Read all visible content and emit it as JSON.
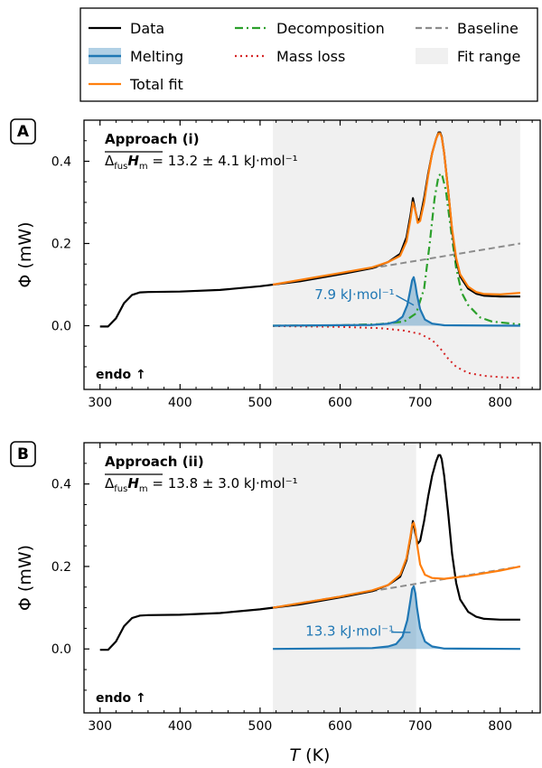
{
  "legend": {
    "items": [
      {
        "key": "data",
        "label": "Data",
        "color": "#000000",
        "style": "solid"
      },
      {
        "key": "decomposition",
        "label": "Decomposition",
        "color": "#2ca02c",
        "style": "dashdot"
      },
      {
        "key": "baseline",
        "label": "Baseline",
        "color": "#8c8c8c",
        "style": "dashed"
      },
      {
        "key": "melting",
        "label": "Melting",
        "color": "#1f77b4",
        "style": "solid-filled"
      },
      {
        "key": "mass_loss",
        "label": "Mass loss",
        "color": "#d62728",
        "style": "dotted"
      },
      {
        "key": "fit_range",
        "label": "Fit range",
        "color": "#f0f0f0",
        "style": "patch"
      },
      {
        "key": "total_fit",
        "label": "Total fit",
        "color": "#ff7f0e",
        "style": "solid"
      }
    ]
  },
  "axes": {
    "xlabel_var": "T",
    "xlabel_unit": " (K)",
    "ylabel": "Φ (mW)",
    "xticks": [
      300,
      400,
      500,
      600,
      700,
      800
    ],
    "yticks": [
      0.0,
      0.2,
      0.4
    ],
    "ytick_labels": [
      "0.0",
      "0.2",
      "0.4"
    ],
    "xlim": [
      280,
      850
    ],
    "ylim": [
      -0.155,
      0.5
    ],
    "endo_label": "endo ↑"
  },
  "chart_data": [
    {
      "type": "line",
      "panel": "A",
      "title": "Approach (i)",
      "formula": {
        "sub1": "fus",
        "var": "H",
        "sub2": "m",
        "value": " = 13.2 ± 4.1 kJ·mol⁻¹"
      },
      "fit_range": [
        516,
        825
      ],
      "series": {
        "data": {
          "x": [
            300,
            310,
            320,
            330,
            340,
            350,
            360,
            400,
            450,
            500,
            550,
            600,
            640,
            660,
            675,
            683,
            688,
            691,
            694,
            697,
            700,
            705,
            710,
            715,
            720,
            723,
            725,
            727,
            730,
            735,
            740,
            745,
            750,
            760,
            770,
            780,
            800,
            825
          ],
          "y": [
            -0.002,
            -0.002,
            0.018,
            0.055,
            0.075,
            0.081,
            0.082,
            0.083,
            0.087,
            0.096,
            0.108,
            0.125,
            0.14,
            0.155,
            0.175,
            0.215,
            0.27,
            0.31,
            0.28,
            0.255,
            0.262,
            0.31,
            0.37,
            0.42,
            0.455,
            0.47,
            0.47,
            0.46,
            0.42,
            0.33,
            0.23,
            0.16,
            0.12,
            0.09,
            0.078,
            0.073,
            0.071,
            0.071
          ]
        },
        "baseline": {
          "x": [
            516,
            825
          ],
          "y": [
            0.1,
            0.2
          ]
        },
        "melting": {
          "x": [
            516,
            640,
            660,
            670,
            678,
            684,
            688,
            690,
            692,
            694,
            696,
            700,
            706,
            715,
            730,
            825
          ],
          "y": [
            0.0,
            0.002,
            0.005,
            0.01,
            0.022,
            0.05,
            0.09,
            0.11,
            0.118,
            0.1,
            0.075,
            0.04,
            0.015,
            0.005,
            0.001,
            0.0
          ]
        },
        "decomposition": {
          "x": [
            516,
            600,
            650,
            680,
            695,
            705,
            712,
            718,
            723,
            727,
            732,
            738,
            745,
            752,
            760,
            775,
            790,
            825
          ],
          "y": [
            0.0,
            0.001,
            0.004,
            0.01,
            0.03,
            0.09,
            0.2,
            0.31,
            0.365,
            0.37,
            0.33,
            0.24,
            0.14,
            0.08,
            0.05,
            0.02,
            0.01,
            0.003
          ]
        },
        "mass_loss": {
          "x": [
            516,
            600,
            650,
            680,
            700,
            715,
            725,
            735,
            745,
            760,
            780,
            800,
            825
          ],
          "y": [
            -0.001,
            -0.003,
            -0.006,
            -0.012,
            -0.02,
            -0.035,
            -0.055,
            -0.08,
            -0.1,
            -0.115,
            -0.122,
            -0.125,
            -0.127
          ]
        },
        "total_fit": {
          "x": [
            516,
            600,
            640,
            660,
            675,
            683,
            688,
            691,
            694,
            697,
            700,
            705,
            710,
            715,
            720,
            723,
            725,
            727,
            730,
            735,
            740,
            745,
            750,
            760,
            770,
            780,
            800,
            825
          ],
          "y": [
            0.1,
            0.128,
            0.142,
            0.155,
            0.17,
            0.205,
            0.26,
            0.3,
            0.28,
            0.25,
            0.255,
            0.3,
            0.365,
            0.42,
            0.455,
            0.468,
            0.468,
            0.458,
            0.42,
            0.33,
            0.235,
            0.165,
            0.125,
            0.095,
            0.082,
            0.077,
            0.076,
            0.08
          ]
        }
      },
      "annotation": {
        "text": "7.9 kJ·mol⁻¹",
        "x": 618,
        "y": 0.065,
        "arrow_to": [
          692,
          0.05
        ]
      }
    },
    {
      "type": "line",
      "panel": "B",
      "title": "Approach (ii)",
      "formula": {
        "sub1": "fus",
        "var": "H",
        "sub2": "m",
        "value": " = 13.8 ± 3.0 kJ·mol⁻¹"
      },
      "fit_range": [
        516,
        695
      ],
      "series": {
        "data": {
          "x": [
            300,
            310,
            320,
            330,
            340,
            350,
            360,
            400,
            450,
            500,
            550,
            600,
            640,
            660,
            675,
            683,
            688,
            691,
            694,
            697,
            700,
            705,
            710,
            715,
            720,
            723,
            725,
            727,
            730,
            735,
            740,
            745,
            750,
            760,
            770,
            780,
            800,
            825
          ],
          "y": [
            -0.002,
            -0.002,
            0.018,
            0.055,
            0.075,
            0.081,
            0.082,
            0.083,
            0.087,
            0.096,
            0.108,
            0.125,
            0.14,
            0.155,
            0.175,
            0.215,
            0.27,
            0.31,
            0.28,
            0.255,
            0.262,
            0.31,
            0.37,
            0.42,
            0.455,
            0.47,
            0.47,
            0.46,
            0.42,
            0.33,
            0.23,
            0.16,
            0.12,
            0.09,
            0.078,
            0.073,
            0.071,
            0.071
          ]
        },
        "baseline": {
          "x": [
            516,
            825
          ],
          "y": [
            0.1,
            0.2
          ]
        },
        "melting": {
          "x": [
            516,
            640,
            660,
            670,
            678,
            684,
            688,
            690,
            692,
            694,
            696,
            700,
            706,
            715,
            730,
            825
          ],
          "y": [
            0.0,
            0.002,
            0.006,
            0.012,
            0.03,
            0.07,
            0.12,
            0.145,
            0.152,
            0.135,
            0.1,
            0.05,
            0.018,
            0.006,
            0.001,
            0.0
          ]
        },
        "total_fit": {
          "x": [
            516,
            600,
            640,
            660,
            675,
            683,
            688,
            690,
            692,
            694,
            696,
            700,
            706,
            715,
            730,
            760,
            800,
            825
          ],
          "y": [
            0.1,
            0.127,
            0.142,
            0.155,
            0.18,
            0.22,
            0.275,
            0.3,
            0.306,
            0.29,
            0.255,
            0.205,
            0.18,
            0.172,
            0.17,
            0.177,
            0.19,
            0.2
          ]
        }
      },
      "annotation": {
        "text": "13.3 kJ·mol⁻¹",
        "x": 612,
        "y": 0.032,
        "arrow_to": [
          688,
          0.04
        ]
      }
    }
  ]
}
